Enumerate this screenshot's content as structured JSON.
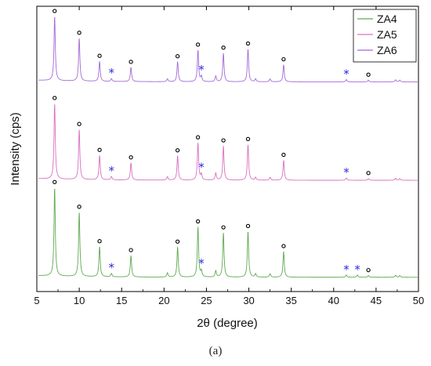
{
  "caption": "(a)",
  "chart_data": {
    "type": "line",
    "xlabel": "2θ (degree)",
    "ylabel": "Intensity (cps)",
    "xlim": [
      5,
      50
    ],
    "x_ticks": [
      5,
      10,
      15,
      20,
      25,
      30,
      35,
      40,
      45,
      50
    ],
    "y_ticks_shown": false,
    "grid": false,
    "legend_position": "top-right",
    "marker_legend": {
      "circle": "unlabeled open-circle peak marker",
      "star": "unlabeled blue asterisk peak marker"
    },
    "series": [
      {
        "name": "ZA4",
        "color": "#5faa4f",
        "baseline": 0.05,
        "peaks": [
          {
            "x": 7.1,
            "h": 0.31
          },
          {
            "x": 10.0,
            "h": 0.225
          },
          {
            "x": 12.4,
            "h": 0.105
          },
          {
            "x": 13.8,
            "h": 0.012
          },
          {
            "x": 16.1,
            "h": 0.075
          },
          {
            "x": 20.4,
            "h": 0.015
          },
          {
            "x": 21.6,
            "h": 0.105
          },
          {
            "x": 24.0,
            "h": 0.175
          },
          {
            "x": 24.4,
            "h": 0.02
          },
          {
            "x": 26.1,
            "h": 0.022
          },
          {
            "x": 27.0,
            "h": 0.155
          },
          {
            "x": 29.9,
            "h": 0.16
          },
          {
            "x": 30.8,
            "h": 0.012
          },
          {
            "x": 32.5,
            "h": 0.012
          },
          {
            "x": 34.1,
            "h": 0.09
          },
          {
            "x": 41.5,
            "h": 0.008
          },
          {
            "x": 42.8,
            "h": 0.008
          },
          {
            "x": 44.1,
            "h": 0.006
          },
          {
            "x": 47.3,
            "h": 0.007
          },
          {
            "x": 47.8,
            "h": 0.006
          }
        ],
        "circle_markers": [
          7.1,
          10.0,
          12.4,
          16.1,
          21.6,
          24.0,
          27.0,
          29.9,
          34.1,
          44.1
        ],
        "star_markers": [
          13.8,
          24.4,
          41.5,
          42.8
        ]
      },
      {
        "name": "ZA5",
        "color": "#d970c0",
        "baseline": 0.39,
        "peaks": [
          {
            "x": 7.1,
            "h": 0.265
          },
          {
            "x": 10.0,
            "h": 0.175
          },
          {
            "x": 12.4,
            "h": 0.085
          },
          {
            "x": 13.8,
            "h": 0.012
          },
          {
            "x": 16.1,
            "h": 0.06
          },
          {
            "x": 20.4,
            "h": 0.012
          },
          {
            "x": 21.6,
            "h": 0.085
          },
          {
            "x": 24.0,
            "h": 0.13
          },
          {
            "x": 24.4,
            "h": 0.02
          },
          {
            "x": 26.1,
            "h": 0.025
          },
          {
            "x": 27.0,
            "h": 0.12
          },
          {
            "x": 29.9,
            "h": 0.125
          },
          {
            "x": 30.8,
            "h": 0.01
          },
          {
            "x": 32.5,
            "h": 0.01
          },
          {
            "x": 34.1,
            "h": 0.07
          },
          {
            "x": 41.5,
            "h": 0.008
          },
          {
            "x": 44.1,
            "h": 0.006
          },
          {
            "x": 47.3,
            "h": 0.007
          },
          {
            "x": 47.8,
            "h": 0.006
          }
        ],
        "circle_markers": [
          7.1,
          10.0,
          12.4,
          16.1,
          21.6,
          24.0,
          27.0,
          29.9,
          34.1,
          44.1
        ],
        "star_markers": [
          13.8,
          24.4,
          41.5
        ]
      },
      {
        "name": "ZA6",
        "color": "#a469d6",
        "baseline": 0.735,
        "peaks": [
          {
            "x": 7.1,
            "h": 0.225
          },
          {
            "x": 10.0,
            "h": 0.15
          },
          {
            "x": 12.4,
            "h": 0.07
          },
          {
            "x": 13.8,
            "h": 0.01
          },
          {
            "x": 16.1,
            "h": 0.05
          },
          {
            "x": 20.4,
            "h": 0.01
          },
          {
            "x": 21.6,
            "h": 0.07
          },
          {
            "x": 24.0,
            "h": 0.11
          },
          {
            "x": 24.4,
            "h": 0.018
          },
          {
            "x": 26.1,
            "h": 0.02
          },
          {
            "x": 27.0,
            "h": 0.1
          },
          {
            "x": 29.9,
            "h": 0.115
          },
          {
            "x": 30.8,
            "h": 0.01
          },
          {
            "x": 32.5,
            "h": 0.01
          },
          {
            "x": 34.1,
            "h": 0.06
          },
          {
            "x": 41.5,
            "h": 0.008
          },
          {
            "x": 44.1,
            "h": 0.006
          },
          {
            "x": 47.3,
            "h": 0.007
          },
          {
            "x": 47.8,
            "h": 0.006
          }
        ],
        "circle_markers": [
          7.1,
          10.0,
          12.4,
          16.1,
          21.6,
          24.0,
          27.0,
          29.9,
          34.1,
          44.1
        ],
        "star_markers": [
          13.8,
          24.4,
          41.5
        ]
      }
    ]
  }
}
